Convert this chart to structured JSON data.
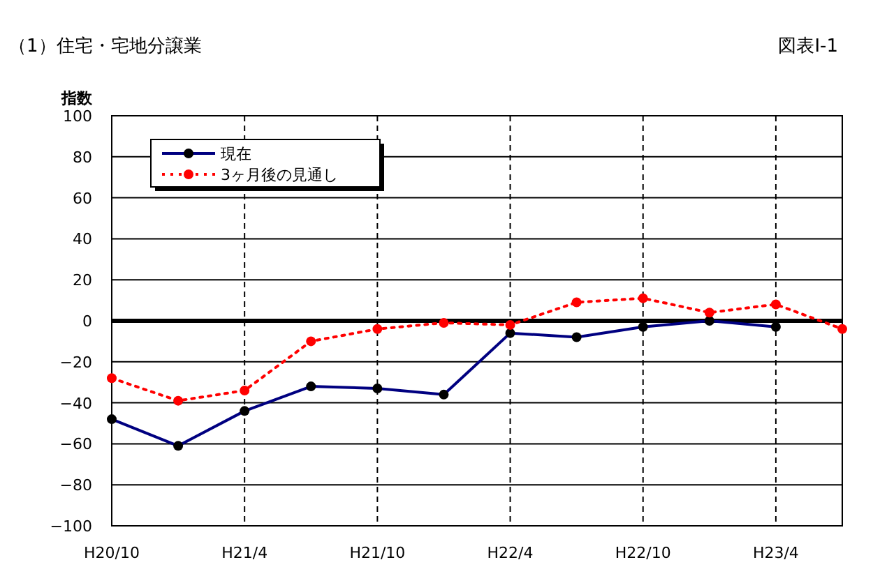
{
  "chart_data": {
    "type": "line",
    "title": "（1）住宅・宅地分譲業",
    "annotations": [
      "図表Ⅰ-1"
    ],
    "ylabel": "指数",
    "categories": [
      "H20/10",
      null,
      "H21/4",
      null,
      "H21/10",
      null,
      "H22/4",
      null,
      "H22/10",
      null,
      "H23/4",
      null
    ],
    "series": [
      {
        "name": "現在",
        "color": "#000080",
        "marker": "circle",
        "line_style": "solid",
        "values": [
          -48,
          -61,
          -44,
          -32,
          -33,
          -36,
          -6,
          -8,
          -3,
          0,
          -3,
          null
        ]
      },
      {
        "name": "3ヶ月後の見通し",
        "color": "#ff0000",
        "marker": "circle",
        "line_style": "dotted",
        "values": [
          -28,
          -39,
          -34,
          -10,
          -4,
          -1,
          -2,
          9,
          11,
          4,
          8,
          -4
        ]
      }
    ],
    "ylim": [
      -100,
      100
    ],
    "yticks": [
      -100,
      -80,
      -60,
      -40,
      -20,
      0,
      20,
      40,
      60,
      80,
      100
    ],
    "grid": true,
    "legend": "top left",
    "ref_lines": [
      {
        "axis": "y",
        "value": 0,
        "color": "#000000"
      }
    ]
  }
}
